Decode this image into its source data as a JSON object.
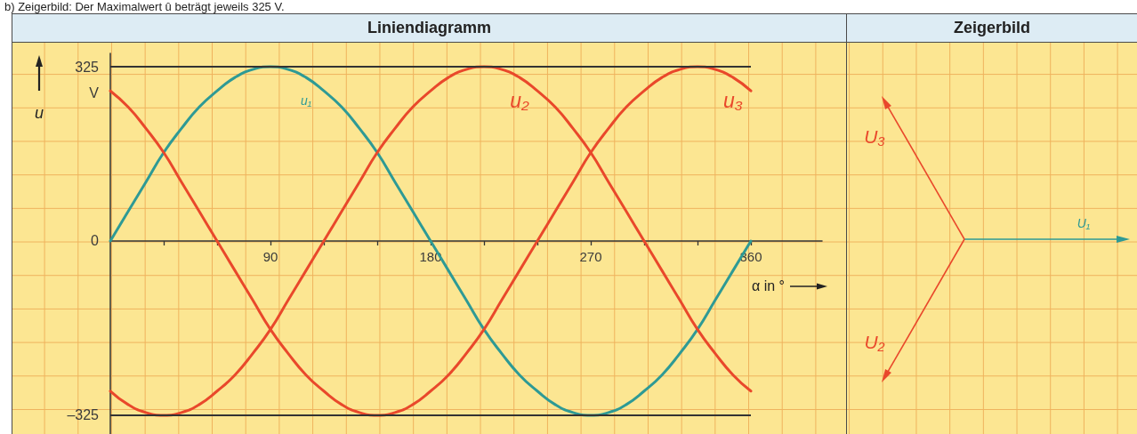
{
  "chart_data": [
    {
      "type": "line",
      "title": "Liniendiagramm",
      "xlabel": "α in °",
      "ylabel": "u",
      "annotations": [
        "V",
        "b) Zeigerbild: Der Maximalwert û beträgt jeweils 325 V."
      ],
      "x": [
        0,
        10,
        20,
        30,
        40,
        50,
        60,
        70,
        80,
        90,
        100,
        110,
        120,
        130,
        140,
        150,
        160,
        170,
        180,
        190,
        200,
        210,
        220,
        230,
        240,
        250,
        260,
        270,
        280,
        290,
        300,
        310,
        320,
        330,
        340,
        350,
        360
      ],
      "series": [
        {
          "name": "u₁",
          "color": "#2e9a95",
          "values": [
            0,
            55,
            110,
            165,
            210,
            250,
            280,
            305,
            320,
            325,
            320,
            305,
            280,
            250,
            210,
            165,
            110,
            55,
            0,
            -55,
            -110,
            -165,
            -210,
            -250,
            -280,
            -305,
            -320,
            -325,
            -320,
            -305,
            -280,
            -250,
            -210,
            -165,
            -110,
            -55,
            0
          ]
        },
        {
          "name": "u₂",
          "color": "#e9482b",
          "values": [
            -280,
            -305,
            -320,
            -325,
            -320,
            -305,
            -280,
            -250,
            -210,
            -165,
            -110,
            -55,
            0,
            55,
            110,
            165,
            210,
            250,
            280,
            305,
            320,
            325,
            320,
            305,
            280,
            250,
            210,
            165,
            110,
            55,
            0,
            -55,
            -110,
            -165,
            -210,
            -250,
            -280
          ]
        },
        {
          "name": "u₃",
          "color": "#e9482b",
          "values": [
            280,
            250,
            210,
            165,
            110,
            55,
            0,
            -55,
            -110,
            -165,
            -210,
            -250,
            -280,
            -305,
            -320,
            -325,
            -320,
            -305,
            -280,
            -250,
            -210,
            -165,
            -110,
            -55,
            0,
            55,
            110,
            165,
            210,
            250,
            280,
            305,
            320,
            325,
            320,
            305,
            280
          ]
        }
      ],
      "xlim": [
        0,
        400
      ],
      "ylim": [
        -360,
        350
      ],
      "xticks": [
        {
          "value": 30,
          "label": null
        },
        {
          "value": 60,
          "label": null
        },
        90,
        {
          "value": 120,
          "label": null
        },
        {
          "value": 150,
          "label": null
        },
        180,
        {
          "value": 210,
          "label": null
        },
        {
          "value": 240,
          "label": null
        },
        270,
        {
          "value": 300,
          "label": null
        },
        {
          "value": 330,
          "label": null
        },
        360
      ],
      "yticks": [
        {
          "value": -325,
          "label": "–325"
        },
        0,
        325
      ],
      "ref_lines": [
        {
          "axis": "y",
          "value": 325,
          "color": "#333333"
        },
        {
          "axis": "y",
          "value": -325,
          "color": "#333333"
        }
      ]
    },
    {
      "type": "other",
      "title": "Zeigerbild",
      "annotations": [
        "U₁",
        "U₂",
        "U₃"
      ],
      "colors": [
        "#2e9a95",
        "#e9482b",
        "#e9482b"
      ]
    }
  ]
}
